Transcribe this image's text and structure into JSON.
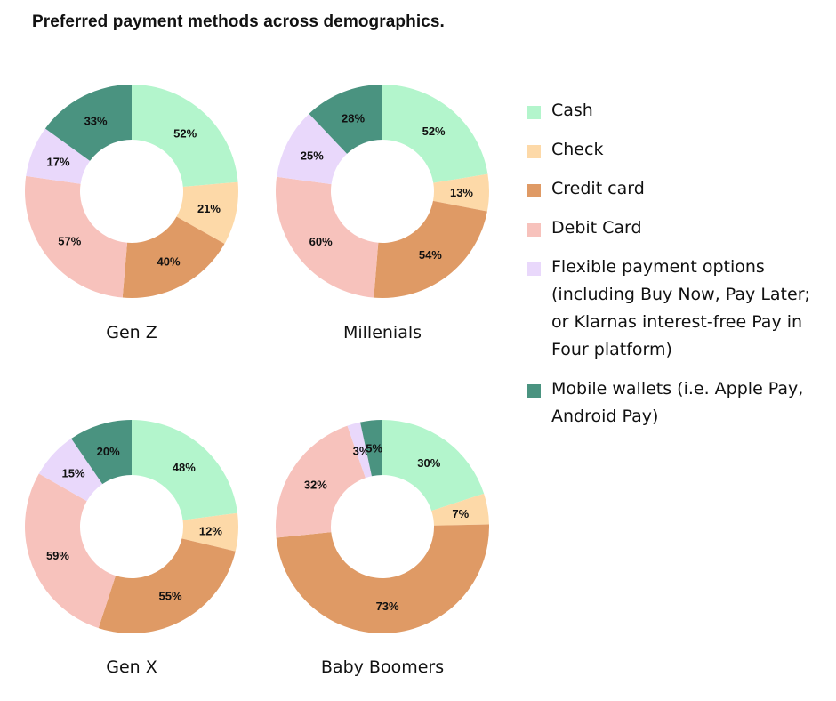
{
  "title": "Preferred payment methods across demographics.",
  "colors": {
    "cash": "#b3f5cc",
    "check": "#fdd9a8",
    "credit": "#df9a65",
    "debit": "#f7c2bc",
    "flexible": "#e9d8fb",
    "mobile": "#4a9380"
  },
  "legend": [
    {
      "key": "cash",
      "label": "Cash"
    },
    {
      "key": "check",
      "label": "Check"
    },
    {
      "key": "credit",
      "label": "Credit card"
    },
    {
      "key": "debit",
      "label": "Debit Card"
    },
    {
      "key": "flexible",
      "label": "Flexible payment options (including Buy Now, Pay Later; or Klarnas interest-free Pay in Four platform)"
    },
    {
      "key": "mobile",
      "label": "Mobile wallets (i.e. Apple Pay, Android Pay)"
    }
  ],
  "chart_data": [
    {
      "type": "pie",
      "title": "Gen Z",
      "donut": true,
      "categories": [
        "Cash",
        "Check",
        "Credit card",
        "Debit Card",
        "Flexible payment options",
        "Mobile wallets"
      ],
      "values": [
        52,
        21,
        40,
        57,
        17,
        33
      ],
      "labels": [
        "52%",
        "21%",
        "40%",
        "57%",
        "17%",
        "33%"
      ]
    },
    {
      "type": "pie",
      "title": "Millenials",
      "donut": true,
      "categories": [
        "Cash",
        "Check",
        "Credit card",
        "Debit Card",
        "Flexible payment options",
        "Mobile wallets"
      ],
      "values": [
        52,
        13,
        54,
        60,
        25,
        28
      ],
      "labels": [
        "52%",
        "13%",
        "54%",
        "60%",
        "25%",
        "28%"
      ]
    },
    {
      "type": "pie",
      "title": "Gen X",
      "donut": true,
      "categories": [
        "Cash",
        "Check",
        "Credit card",
        "Debit Card",
        "Flexible payment options",
        "Mobile wallets"
      ],
      "values": [
        48,
        12,
        55,
        59,
        15,
        20
      ],
      "labels": [
        "48%",
        "12%",
        "55%",
        "59%",
        "15%",
        "20%"
      ]
    },
    {
      "type": "pie",
      "title": "Baby Boomers",
      "donut": true,
      "categories": [
        "Cash",
        "Check",
        "Credit card",
        "Debit Card",
        "Flexible payment options",
        "Mobile wallets"
      ],
      "values": [
        30,
        7,
        73,
        32,
        3,
        5
      ],
      "labels": [
        "30%",
        "7%",
        "73%",
        "32%",
        "3%",
        "5%"
      ]
    }
  ]
}
